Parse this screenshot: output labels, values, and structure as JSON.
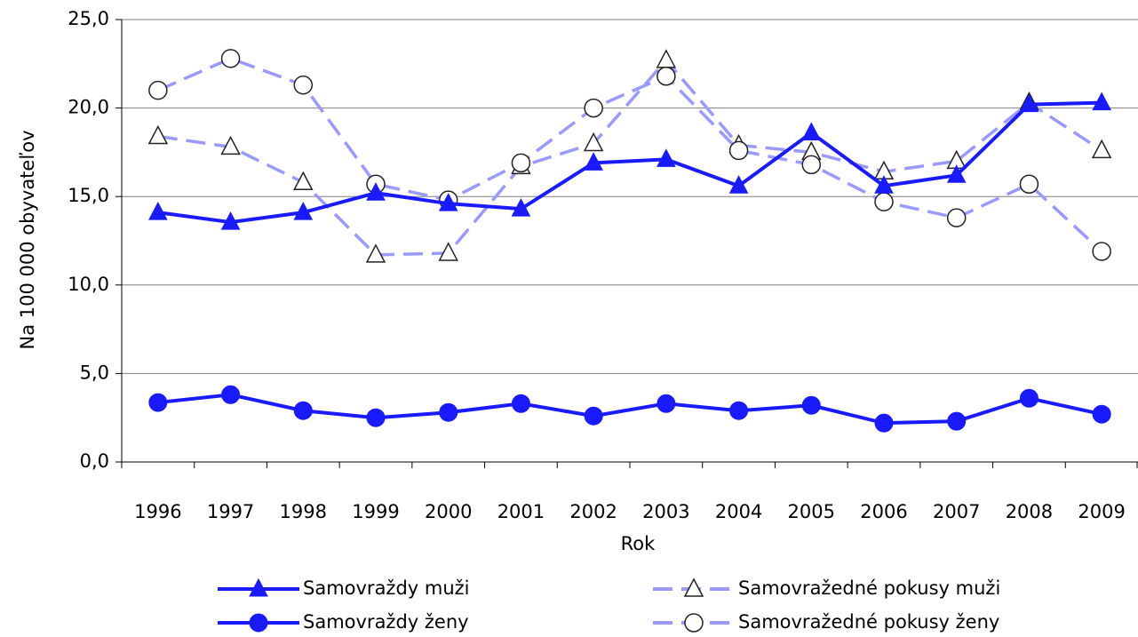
{
  "chart_data": {
    "type": "line",
    "x_label": "Rok",
    "y_label": "Na 100 000 obyvateľov",
    "categories": [
      "1996",
      "1997",
      "1998",
      "1999",
      "2000",
      "2001",
      "2002",
      "2003",
      "2004",
      "2005",
      "2006",
      "2007",
      "2008",
      "2009"
    ],
    "series": [
      {
        "name": "Samovraždy muži",
        "color": "#1a1aff",
        "dashed": false,
        "marker": "triangle",
        "filled": true,
        "values": [
          14.1,
          13.55,
          14.1,
          15.2,
          14.6,
          14.3,
          16.9,
          17.1,
          15.6,
          18.6,
          15.6,
          16.2,
          20.2,
          20.3
        ]
      },
      {
        "name": "Samovražedné pokusy muži",
        "color": "#9999ff",
        "dashed": true,
        "marker": "triangle",
        "filled": false,
        "values": [
          18.4,
          17.8,
          15.8,
          11.7,
          11.8,
          16.7,
          18.0,
          22.7,
          17.9,
          17.5,
          16.4,
          17.0,
          20.3,
          17.6
        ]
      },
      {
        "name": "Samovraždy ženy",
        "color": "#1a1aff",
        "dashed": false,
        "marker": "circle",
        "filled": true,
        "values": [
          3.36,
          3.8,
          2.9,
          2.5,
          2.8,
          3.3,
          2.6,
          3.3,
          2.9,
          3.2,
          2.2,
          2.3,
          3.6,
          2.7
        ]
      },
      {
        "name": "Samovražedné pokusy ženy",
        "color": "#9999ff",
        "dashed": true,
        "marker": "circle",
        "filled": false,
        "values": [
          21.0,
          22.8,
          21.3,
          15.7,
          14.8,
          16.9,
          20.0,
          21.8,
          17.6,
          16.8,
          14.7,
          13.8,
          15.7,
          11.9
        ]
      }
    ],
    "ylim": [
      0,
      25
    ],
    "yticks": [
      {
        "value": 0,
        "label": "0,0"
      },
      {
        "value": 5,
        "label": "5,0"
      },
      {
        "value": 10,
        "label": "10,0"
      },
      {
        "value": 15,
        "label": "15,0"
      },
      {
        "value": 20,
        "label": "20,0"
      },
      {
        "value": 25,
        "label": "25,0"
      }
    ],
    "grid": true,
    "legend": "bottom"
  }
}
